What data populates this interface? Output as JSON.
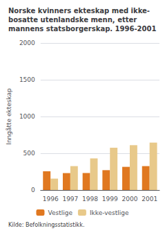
{
  "chart_data": {
    "type": "bar",
    "title": "Norske kvinners ekteskap med ikke-\nbosatte utenlandske menn, etter\nmannens statsborgerskap. 1996-2001",
    "ylabel": "Inngåtte ekteskap",
    "annotations": [
      "Kilde: Befolkningsstatistikk."
    ],
    "categories": [
      "1996",
      "1997",
      "1998",
      "1999",
      "2000",
      "2001"
    ],
    "series": [
      {
        "name": "Vestlige",
        "color": "#e07820",
        "values": [
          255,
          230,
          230,
          270,
          315,
          325
        ]
      },
      {
        "name": "Ikke-vestlige",
        "color": "#e8c98a",
        "values": [
          155,
          325,
          430,
          575,
          610,
          645
        ]
      }
    ],
    "ylim": [
      0,
      2000
    ],
    "yticks": [
      0,
      500,
      1000,
      1500,
      2000
    ],
    "grid": true,
    "legend": "bottom"
  }
}
